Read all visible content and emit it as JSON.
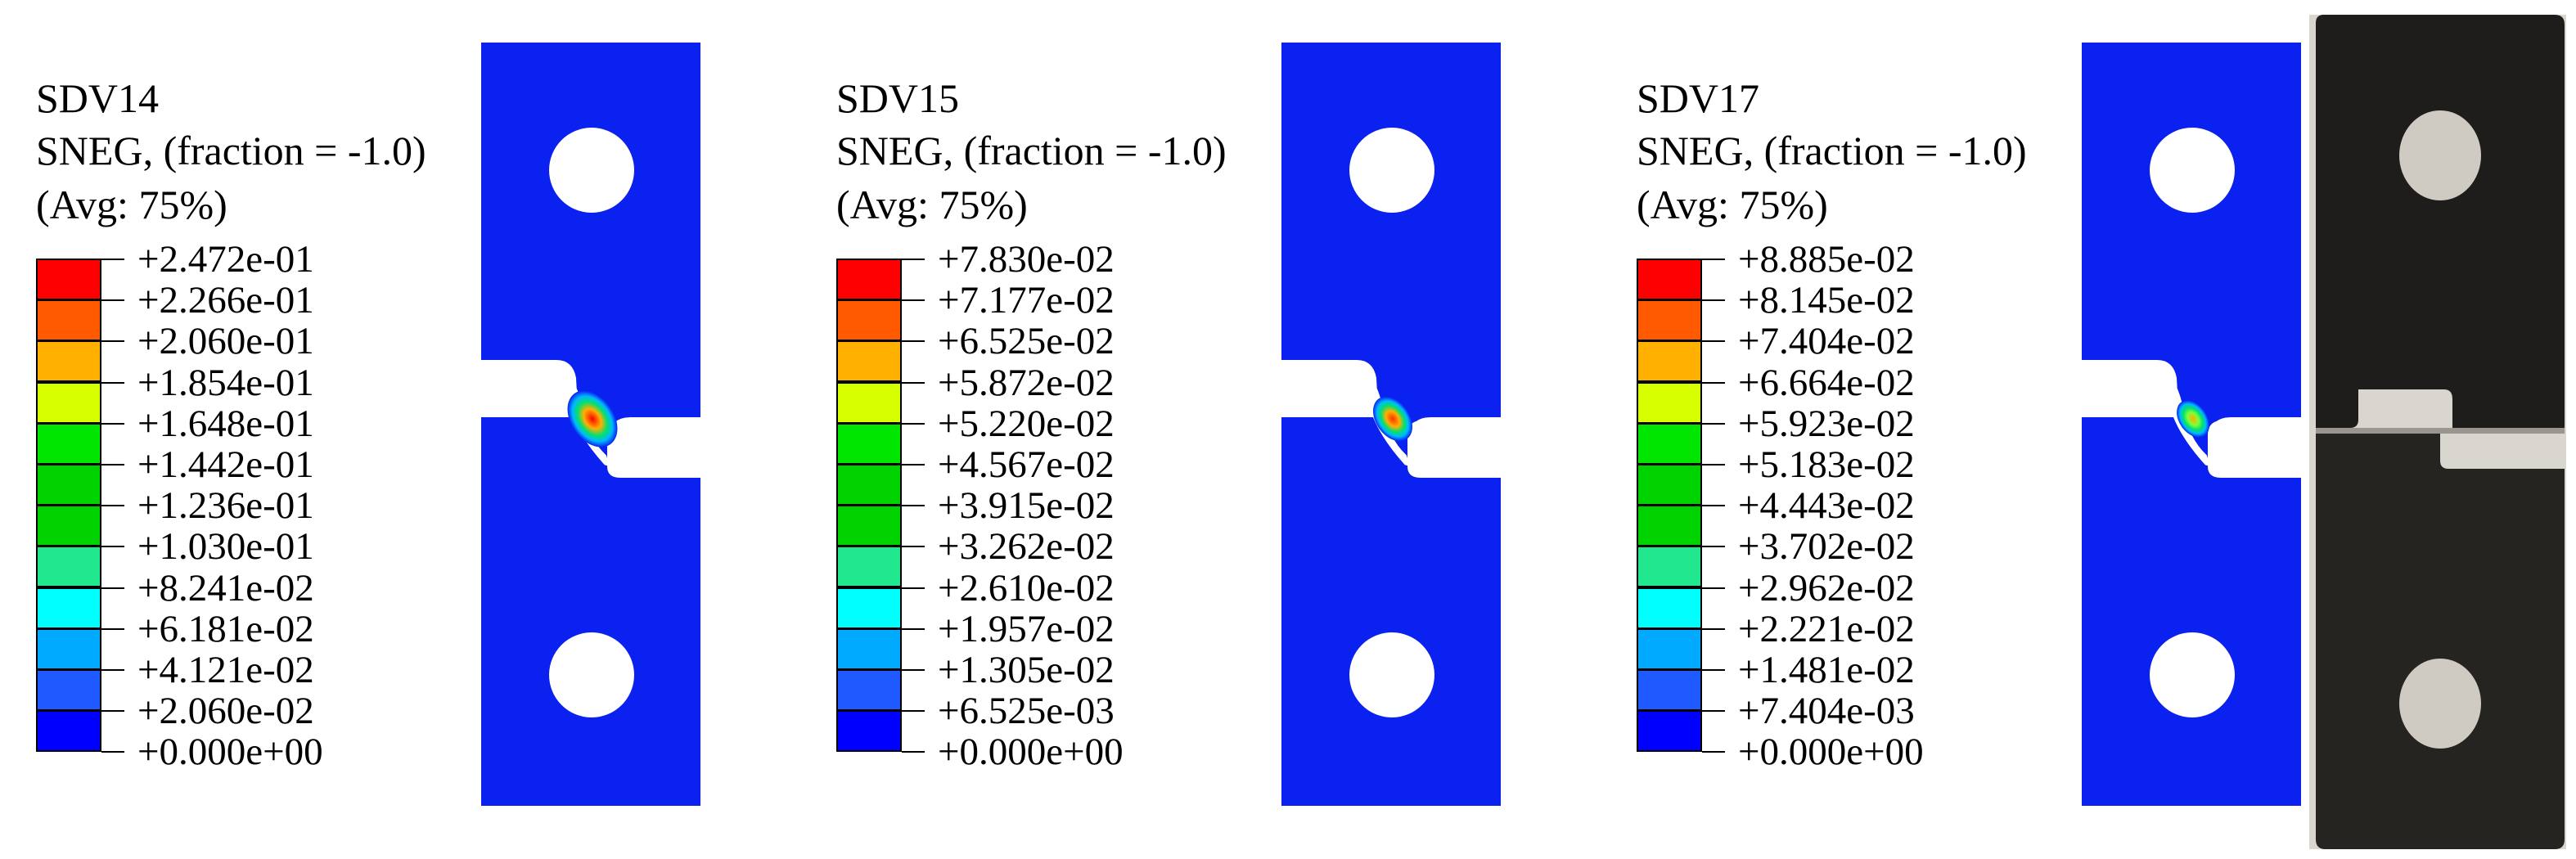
{
  "colors": {
    "background": "#ffffff",
    "specimen_blue": "#0a21f0",
    "contour_scale": [
      "#0000ff",
      "#1e5aff",
      "#00aaff",
      "#00ffff",
      "#21e88e",
      "#00d200",
      "#00d200",
      "#00e600",
      "#d8ff00",
      "#ffb000",
      "#ff5a00",
      "#ff0000"
    ]
  },
  "panels": [
    {
      "variable": "SDV14",
      "description": "SNEG, (fraction = -1.0)",
      "averaging": "(Avg: 75%)",
      "legend_values": [
        "+2.472e-01",
        "+2.266e-01",
        "+2.060e-01",
        "+1.854e-01",
        "+1.648e-01",
        "+1.442e-01",
        "+1.236e-01",
        "+1.030e-01",
        "+8.241e-02",
        "+6.181e-02",
        "+4.121e-02",
        "+2.060e-02",
        "+0.000e+00"
      ],
      "hotspot_level": 1.0
    },
    {
      "variable": "SDV15",
      "description": "SNEG, (fraction = -1.0)",
      "averaging": "(Avg: 75%)",
      "legend_values": [
        "+7.830e-02",
        "+7.177e-02",
        "+6.525e-02",
        "+5.872e-02",
        "+5.220e-02",
        "+4.567e-02",
        "+3.915e-02",
        "+3.262e-02",
        "+2.610e-02",
        "+1.957e-02",
        "+1.305e-02",
        "+6.525e-03",
        "+0.000e+00"
      ],
      "hotspot_level": 0.6
    },
    {
      "variable": "SDV17",
      "description": "SNEG, (fraction = -1.0)",
      "averaging": "(Avg: 75%)",
      "legend_values": [
        "+8.885e-02",
        "+8.145e-02",
        "+7.404e-02",
        "+6.664e-02",
        "+5.923e-02",
        "+5.183e-02",
        "+4.443e-02",
        "+3.702e-02",
        "+2.962e-02",
        "+2.221e-02",
        "+1.481e-02",
        "+7.404e-03",
        "+0.000e+00"
      ],
      "hotspot_level": 0.35
    }
  ],
  "photo": {
    "material_color": "#1f1d1b",
    "background_color": "#d9d6cf"
  }
}
